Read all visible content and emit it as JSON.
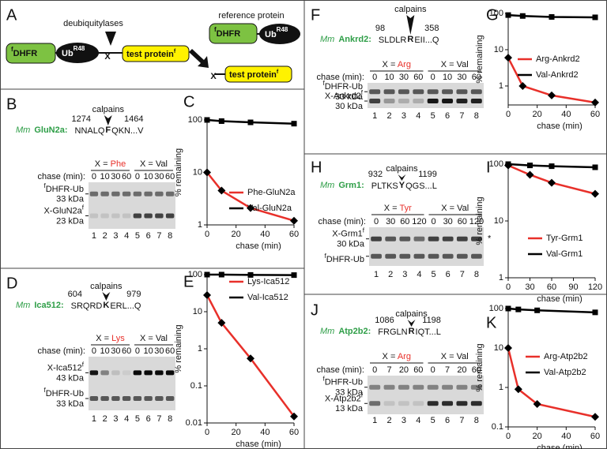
{
  "diagram": {
    "letter": "A",
    "deub": "deubiquitylases",
    "ref": "reference protein",
    "f": "f",
    "dhfr": "DHFR",
    "ub": "Ub",
    "r48": "R48",
    "x": "X",
    "test": "test protein"
  },
  "gels": [
    {
      "letter": "B",
      "species": "Mm",
      "gene": "GluN2a:",
      "start": "1274",
      "left": "NNALQ",
      "residue": "F",
      "right": "QKN...V",
      "end": "1464",
      "protease": "calpains",
      "groups": [
        {
          "prefix": "X = ",
          "aa": "Phe"
        },
        {
          "prefix": "X = ",
          "aa": "Val"
        }
      ],
      "chase_label": "chase (min):",
      "times": [
        "0",
        "10",
        "30",
        "60"
      ],
      "lanes": [
        "1",
        "2",
        "3",
        "4",
        "5",
        "6",
        "7",
        "8"
      ],
      "bands": [
        {
          "pre": "f",
          "name": "DHFR-Ub",
          "kda": "33 kDa"
        },
        {
          "name": "X-GluN2a",
          "post": "f",
          "kda": "23 kDa"
        }
      ]
    },
    {
      "letter": "D",
      "species": "Mm",
      "gene": "Ica512:",
      "start": "604",
      "left": "SRQRD",
      "residue": "K",
      "right": "ERL...Q",
      "end": "979",
      "protease": "calpains",
      "groups": [
        {
          "prefix": "X = ",
          "aa": "Lys"
        },
        {
          "prefix": "X = ",
          "aa": "Val"
        }
      ],
      "chase_label": "chase (min):",
      "times": [
        "0",
        "10",
        "30",
        "60"
      ],
      "lanes": [
        "1",
        "2",
        "3",
        "4",
        "5",
        "6",
        "7",
        "8"
      ],
      "bands": [
        {
          "name": "X-Ica512",
          "post": "f",
          "kda": "43 kDa"
        },
        {
          "pre": "f",
          "name": "DHFR-Ub",
          "kda": "33 kDa"
        }
      ]
    },
    {
      "letter": "F",
      "species": "Mm",
      "gene": "Ankrd2:",
      "start": "98",
      "left": "SLDLR",
      "residue": "R",
      "right": "EII...Q",
      "end": "358",
      "protease": "calpains",
      "groups": [
        {
          "prefix": "X = ",
          "aa": "Arg"
        },
        {
          "prefix": "X = ",
          "aa": "Val"
        }
      ],
      "chase_label": "chase (min):",
      "times": [
        "0",
        "10",
        "30",
        "60"
      ],
      "lanes": [
        "1",
        "2",
        "3",
        "4",
        "5",
        "6",
        "7",
        "8"
      ],
      "bands": [
        {
          "pre": "f",
          "name": "DHFR-Ub",
          "kda": "33 kDa"
        },
        {
          "name": "X-Ankrd2",
          "post": "f",
          "kda": "30 kDa"
        }
      ]
    },
    {
      "letter": "H",
      "species": "Mm",
      "gene": "Grm1:",
      "start": "932",
      "left": "PLTKS",
      "residue": "Y",
      "right": "QGS...L",
      "end": "1199",
      "protease": "calpains",
      "groups": [
        {
          "prefix": "X = ",
          "aa": "Tyr"
        },
        {
          "prefix": "X = ",
          "aa": "Val"
        }
      ],
      "chase_label": "chase (min):",
      "times": [
        "0",
        "30",
        "60",
        "120"
      ],
      "lanes": [
        "1",
        "2",
        "3",
        "4",
        "5",
        "6",
        "7",
        "8"
      ],
      "bands": [
        {
          "name": "X-Grm1",
          "post": "f",
          "kda": "30 kDa"
        },
        {
          "pre": "f",
          "name": "DHFR-Ub"
        }
      ],
      "note": "*"
    },
    {
      "letter": "J",
      "species": "Mm",
      "gene": "Atp2b2:",
      "start": "1086",
      "left": "FRGLN",
      "residue": "R",
      "right": "IQT...L",
      "end": "1198",
      "protease": "calpains",
      "groups": [
        {
          "prefix": "X = ",
          "aa": "Arg"
        },
        {
          "prefix": "X = ",
          "aa": "Val"
        }
      ],
      "chase_label": "chase (min):",
      "times": [
        "0",
        "7",
        "20",
        "60"
      ],
      "lanes": [
        "1",
        "2",
        "3",
        "4",
        "5",
        "6",
        "7",
        "8"
      ],
      "bands": [
        {
          "pre": "f",
          "name": "DHFR-Ub",
          "kda": "33 kDa"
        },
        {
          "name": "X-Atp2b2",
          "post": "f",
          "kda": "13 kDa"
        }
      ]
    }
  ],
  "chart_data": [
    {
      "type": "line",
      "panel_label": "C",
      "xlabel": "chase (min)",
      "ylabel": "% remaining",
      "yscale": "log",
      "x": [
        0,
        10,
        30,
        60
      ],
      "xlim": [
        0,
        60
      ],
      "xticks": [
        0,
        20,
        40,
        60
      ],
      "ylim": [
        1,
        100
      ],
      "yticks": [
        1,
        10,
        100
      ],
      "series": [
        {
          "name": "Phe-GluN2a",
          "color": "#e8302a",
          "marker": "diamond",
          "values": [
            10,
            4.5,
            2.1,
            1.2
          ]
        },
        {
          "name": "Val-GluN2a",
          "color": "#000000",
          "marker": "square",
          "values": [
            100,
            95,
            90,
            85
          ]
        }
      ]
    },
    {
      "type": "line",
      "panel_label": "E",
      "xlabel": "chase (min)",
      "ylabel": "% remaining",
      "yscale": "log",
      "x": [
        0,
        10,
        30,
        60
      ],
      "xlim": [
        0,
        60
      ],
      "xticks": [
        0,
        20,
        40,
        60
      ],
      "ylim": [
        0.01,
        100
      ],
      "yticks": [
        0.01,
        0.1,
        1,
        10,
        100
      ],
      "series": [
        {
          "name": "Lys-Ica512",
          "color": "#e8302a",
          "marker": "diamond",
          "values": [
            28,
            5,
            0.55,
            0.015
          ]
        },
        {
          "name": "Val-Ica512",
          "color": "#000000",
          "marker": "square",
          "values": [
            100,
            100,
            98,
            97
          ]
        }
      ]
    },
    {
      "type": "line",
      "panel_label": "G",
      "xlabel": "chase (min)",
      "ylabel": "% remaining",
      "yscale": "log",
      "x": [
        0,
        10,
        30,
        60
      ],
      "xlim": [
        0,
        60
      ],
      "xticks": [
        0,
        20,
        40,
        60
      ],
      "ylim": [
        0.3,
        100
      ],
      "yticks": [
        1,
        10,
        100
      ],
      "series": [
        {
          "name": "Arg-Ankrd2",
          "color": "#e8302a",
          "marker": "diamond",
          "values": [
            6,
            1,
            0.55,
            0.35
          ]
        },
        {
          "name": "Val-Ankrd2",
          "color": "#000000",
          "marker": "square",
          "values": [
            90,
            85,
            80,
            78
          ]
        }
      ]
    },
    {
      "type": "line",
      "panel_label": "I",
      "xlabel": "chase (min)",
      "ylabel": "% remaining",
      "yscale": "log",
      "x": [
        0,
        30,
        60,
        120
      ],
      "xlim": [
        0,
        120
      ],
      "xticks": [
        0,
        30,
        60,
        90,
        120
      ],
      "ylim": [
        1,
        100
      ],
      "yticks": [
        1,
        10,
        100
      ],
      "series": [
        {
          "name": "Tyr-Grm1",
          "color": "#e8302a",
          "marker": "diamond",
          "values": [
            95,
            65,
            47,
            30
          ]
        },
        {
          "name": "Val-Grm1",
          "color": "#000000",
          "marker": "square",
          "values": [
            100,
            95,
            92,
            88
          ]
        }
      ]
    },
    {
      "type": "line",
      "panel_label": "K",
      "xlabel": "chase (min)",
      "ylabel": "% remaining",
      "yscale": "log",
      "x": [
        0,
        7,
        20,
        60
      ],
      "xlim": [
        0,
        60
      ],
      "xticks": [
        0,
        20,
        40,
        60
      ],
      "ylim": [
        0.1,
        100
      ],
      "yticks": [
        0.1,
        1,
        10,
        100
      ],
      "series": [
        {
          "name": "Arg-Atp2b2",
          "color": "#e8302a",
          "marker": "diamond",
          "values": [
            10,
            0.9,
            0.38,
            0.18
          ]
        },
        {
          "name": "Val-Atp2b2",
          "color": "#000000",
          "marker": "square",
          "values": [
            100,
            95,
            90,
            80
          ]
        }
      ]
    }
  ]
}
